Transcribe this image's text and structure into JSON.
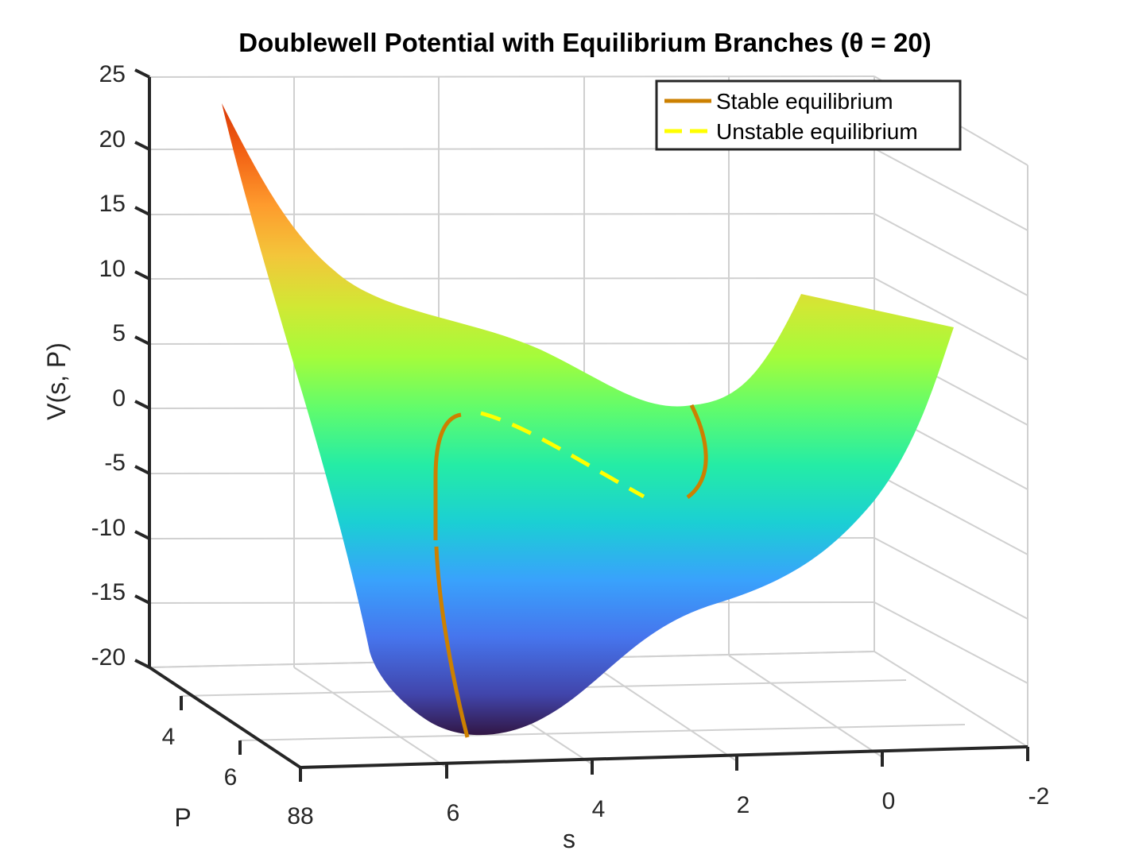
{
  "chart_data": {
    "type": "surface",
    "title": "Doublewell Potential with Equilibrium Branches (θ = 20)",
    "xlabel": "s",
    "ylabel": "P",
    "zlabel": "V(s, P)",
    "xlim": [
      -2,
      8
    ],
    "ylim": [
      2,
      8
    ],
    "zlim": [
      -20,
      25
    ],
    "x_ticks": [
      "88",
      "6",
      "4",
      "2",
      "0",
      "-2"
    ],
    "y_ticks": [
      "4",
      "6"
    ],
    "z_ticks": [
      "25",
      "20",
      "15",
      "10",
      "5",
      "0",
      "-5",
      "-10",
      "-15",
      "-20"
    ],
    "grid": true,
    "colormap": "turbo",
    "legend_position": "top-right",
    "series": [
      {
        "name": "Stable equilibrium",
        "color": "#CC8000",
        "style": "solid"
      },
      {
        "name": "Unstable equilibrium",
        "color": "#FFFF00",
        "style": "dashed"
      }
    ]
  }
}
